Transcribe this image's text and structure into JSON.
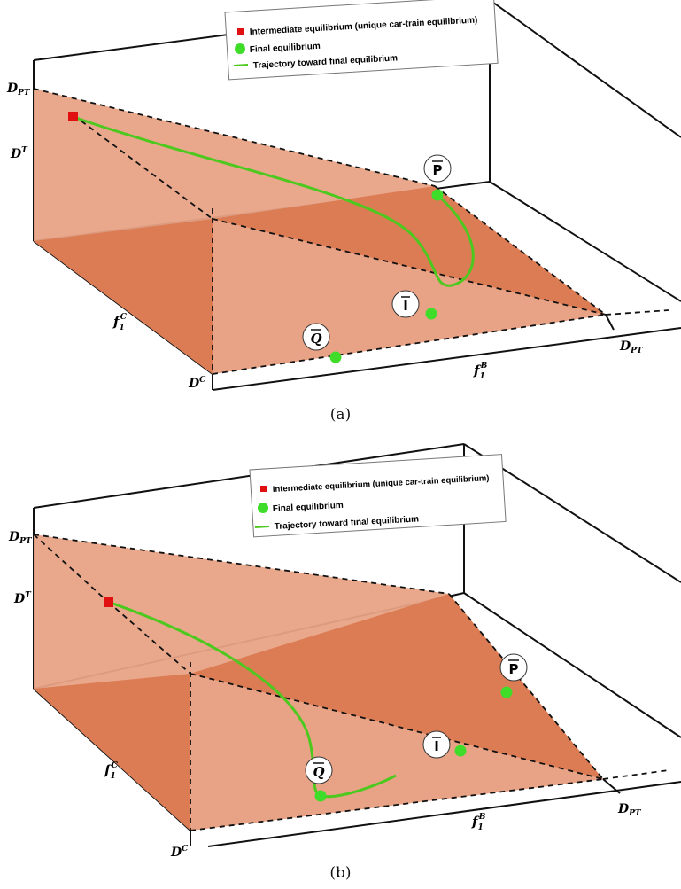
{
  "colors": {
    "plane_light": "#e8a386",
    "plane_dark": "#dc7c54",
    "trajectory": "#4dc81e",
    "final_marker": "#3fdc2a",
    "intermediate_marker": "#e01010",
    "axis": "#111111"
  },
  "legend": {
    "intermediate": "Intermediate equilibrium (unique car-train equilibrium)",
    "final": "Final equilibrium",
    "trajectory": "Trajectory toward final equilibrium"
  },
  "axes": {
    "dpt_top": "D",
    "dpt_top_sub": "PT",
    "dt": "D",
    "dt_sup": "T",
    "fc": "f",
    "fc_sub": "1",
    "fc_sup": "C",
    "dc": "D",
    "dc_sup": "C",
    "fb": "f",
    "fb_sub": "1",
    "fb_sup": "B",
    "dpt_right": "D",
    "dpt_right_sub": "PT"
  },
  "points": {
    "p": "P",
    "i": "I",
    "q": "Q"
  },
  "captions": {
    "a": "(a)",
    "b": "(b)"
  }
}
